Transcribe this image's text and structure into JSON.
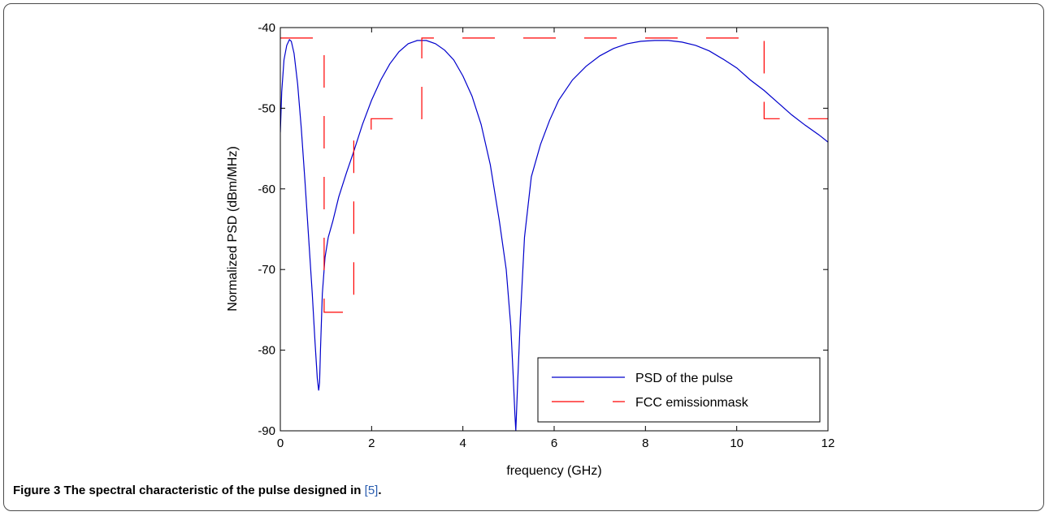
{
  "caption": {
    "label": "Figure 3",
    "title": "The spectral characteristic of the pulse designed in",
    "ref": "[5]",
    "end": "."
  },
  "chart_data": {
    "type": "line",
    "xlabel": "frequency (GHz)",
    "ylabel": "Normalized PSD (dBm/MHz)",
    "xlim": [
      0,
      12
    ],
    "ylim": [
      -90,
      -40
    ],
    "xticks": [
      "0",
      "2",
      "4",
      "6",
      "8",
      "10",
      "12"
    ],
    "yticks": [
      "-40",
      "-50",
      "-60",
      "-70",
      "-80",
      "-90"
    ],
    "xtick_values": [
      0,
      2,
      4,
      6,
      8,
      10,
      12
    ],
    "ytick_values": [
      -40,
      -50,
      -60,
      -70,
      -80,
      -90
    ],
    "legend_position": "bottom-right",
    "series": [
      {
        "name": "PSD of the pulse",
        "color": "#0000cc",
        "style": "solid",
        "x": [
          0,
          0.03,
          0.08,
          0.14,
          0.2,
          0.24,
          0.3,
          0.38,
          0.46,
          0.54,
          0.62,
          0.7,
          0.76,
          0.81,
          0.84,
          0.86,
          0.88,
          0.92,
          0.98,
          1.05,
          1.15,
          1.28,
          1.45,
          1.6,
          1.8,
          2.0,
          2.2,
          2.4,
          2.6,
          2.8,
          3.0,
          3.2,
          3.4,
          3.6,
          3.8,
          4.0,
          4.2,
          4.4,
          4.6,
          4.8,
          4.95,
          5.05,
          5.1,
          5.14,
          5.16,
          5.2,
          5.26,
          5.35,
          5.5,
          5.7,
          5.9,
          6.1,
          6.4,
          6.7,
          7.0,
          7.3,
          7.6,
          7.9,
          8.2,
          8.5,
          8.8,
          9.1,
          9.4,
          9.7,
          10.0,
          10.3,
          10.6,
          10.9,
          11.2,
          11.5,
          11.8,
          12.0
        ],
        "y": [
          -53,
          -48,
          -44,
          -42.2,
          -41.5,
          -41.7,
          -43.2,
          -47,
          -52.5,
          -59,
          -66,
          -73,
          -79,
          -83.5,
          -85,
          -84,
          -80,
          -73,
          -68.5,
          -66,
          -64,
          -61,
          -58,
          -55.5,
          -52,
          -49,
          -46.5,
          -44.5,
          -43,
          -42,
          -41.6,
          -41.6,
          -42,
          -42.8,
          -44,
          -46,
          -48.5,
          -52,
          -57,
          -64,
          -70,
          -77,
          -83,
          -88,
          -90,
          -84,
          -76,
          -66,
          -58.5,
          -54.5,
          -51.5,
          -49,
          -46.5,
          -44.8,
          -43.5,
          -42.6,
          -42,
          -41.7,
          -41.6,
          -41.6,
          -41.8,
          -42.2,
          -42.9,
          -43.9,
          -45,
          -46.5,
          -47.8,
          -49.3,
          -50.8,
          -52.1,
          -53.3,
          -54.2
        ]
      },
      {
        "name": "FCC emissionmask",
        "color": "#ff0000",
        "style": "dashed",
        "x": [
          0,
          0.96,
          0.96,
          1.61,
          1.61,
          1.99,
          1.99,
          3.1,
          3.1,
          10.6,
          10.6,
          12
        ],
        "y": [
          -41.3,
          -41.3,
          -75.3,
          -75.3,
          -53.3,
          -53.3,
          -51.3,
          -51.3,
          -41.3,
          -41.3,
          -51.3,
          -51.3
        ]
      }
    ]
  }
}
